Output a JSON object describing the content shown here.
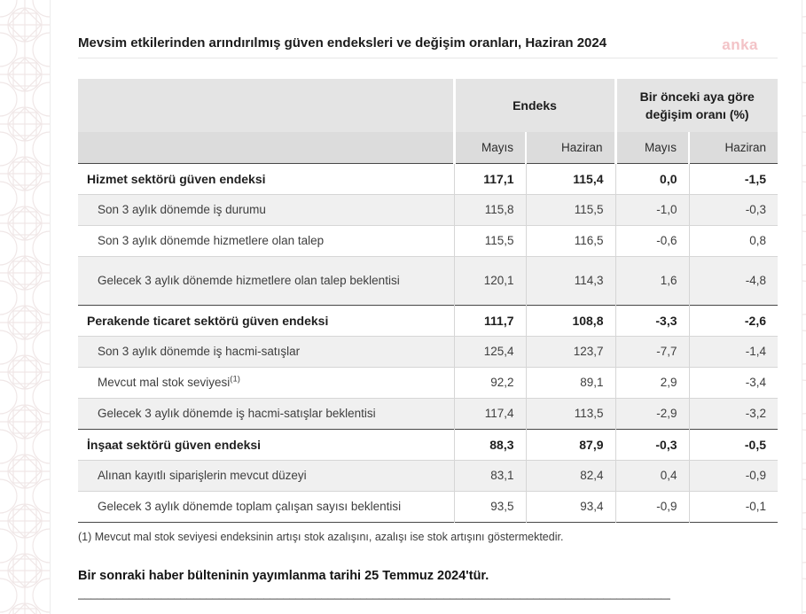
{
  "page": {
    "title": "Mevsim etkilerinden arındırılmış güven endeksleri ve değişim oranları, Haziran 2024",
    "watermark": "anka",
    "footnote": "(1) Mevcut mal stok seviyesi endeksinin artışı stok azalışını, azalışı ise stok artışını göstermektedir.",
    "next_bulletin": "Bir sonraki haber bülteninin yayımlanma tarihi 25 Temmuz 2024'tür.",
    "separator": "______________________________________________________________________________________________________________________"
  },
  "colors": {
    "header_bg": "#e4e4e4",
    "subheader_bg": "#dcdcdc",
    "stripe_bg": "#f0f0f0",
    "dark_border": "#474747",
    "light_border": "#d6d6d6",
    "watermark_pink": "#f3c3c7"
  },
  "table": {
    "col_groups": [
      {
        "label": "Endeks",
        "span": 2
      },
      {
        "label": "Bir önceki aya göre değişim oranı (%)",
        "span": 2
      }
    ],
    "sub_headers": [
      "Mayıs",
      "Haziran",
      "Mayıs",
      "Haziran"
    ],
    "rows": [
      {
        "label": "Hizmet sektörü güven endeksi",
        "section": true,
        "values": [
          "117,1",
          "115,4",
          "0,0",
          "-1,5"
        ]
      },
      {
        "label": "Son 3 aylık dönemde iş durumu",
        "section": false,
        "values": [
          "115,8",
          "115,5",
          "-1,0",
          "-0,3"
        ]
      },
      {
        "label": "Son 3 aylık dönemde hizmetlere olan talep",
        "section": false,
        "values": [
          "115,5",
          "116,5",
          "-0,6",
          "0,8"
        ]
      },
      {
        "label": "Gelecek 3 aylık dönemde hizmetlere olan talep beklentisi",
        "section": false,
        "tall": true,
        "values": [
          "120,1",
          "114,3",
          "1,6",
          "-4,8"
        ]
      },
      {
        "label": "Perakende ticaret sektörü güven endeksi",
        "section": true,
        "values": [
          "111,7",
          "108,8",
          "-3,3",
          "-2,6"
        ]
      },
      {
        "label": "Son 3 aylık dönemde iş hacmi-satışlar",
        "section": false,
        "values": [
          "125,4",
          "123,7",
          "-7,7",
          "-1,4"
        ]
      },
      {
        "label": "Mevcut mal stok seviyesi",
        "label_sup": "(1)",
        "section": false,
        "values": [
          "92,2",
          "89,1",
          "2,9",
          "-3,4"
        ]
      },
      {
        "label": "Gelecek 3 aylık dönemde iş hacmi-satışlar beklentisi",
        "section": false,
        "values": [
          "117,4",
          "113,5",
          "-2,9",
          "-3,2"
        ]
      },
      {
        "label": "İnşaat sektörü güven endeksi",
        "section": true,
        "values": [
          "88,3",
          "87,9",
          "-0,3",
          "-0,5"
        ]
      },
      {
        "label": "Alınan kayıtlı siparişlerin mevcut düzeyi",
        "section": false,
        "values": [
          "83,1",
          "82,4",
          "0,4",
          "-0,9"
        ]
      },
      {
        "label": "Gelecek 3 aylık dönemde toplam çalışan sayısı beklentisi",
        "section": false,
        "values": [
          "93,5",
          "93,4",
          "-0,9",
          "-0,1"
        ]
      }
    ]
  }
}
